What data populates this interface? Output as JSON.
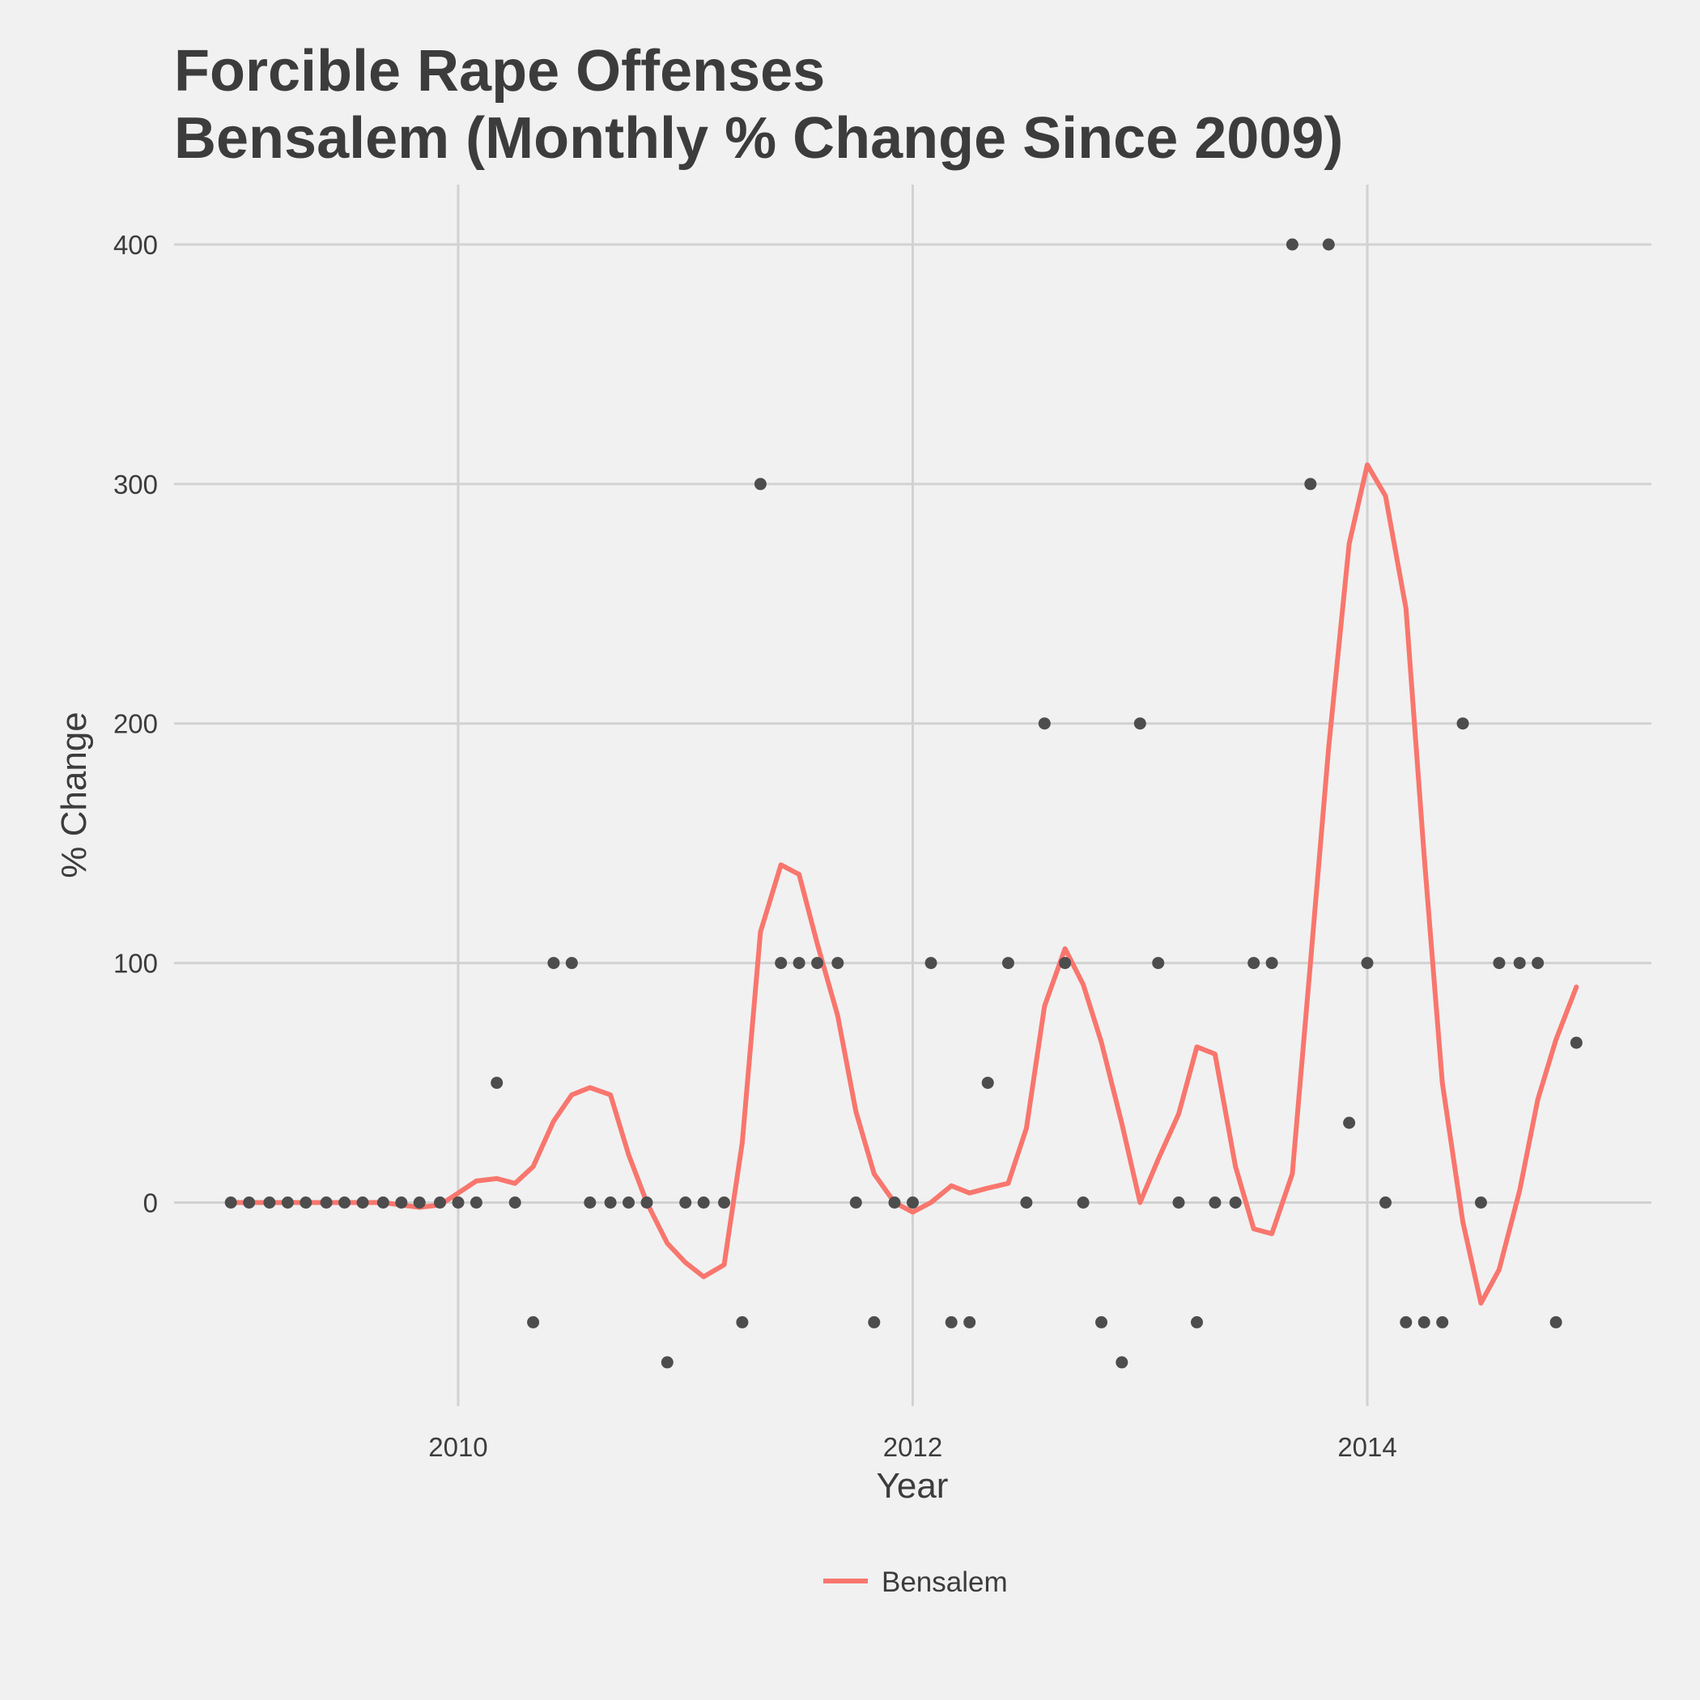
{
  "chart_data": {
    "type": "scatter",
    "title_lines": [
      "Forcible Rape Offenses",
      "Bensalem (Monthly % Change Since 2009)"
    ],
    "xlabel": "Year",
    "ylabel": "% Change",
    "x_ticks": [
      2010,
      2012,
      2014
    ],
    "y_ticks": [
      0,
      100,
      200,
      300,
      400
    ],
    "xlim": [
      2008.75,
      2015.25
    ],
    "ylim": [
      -85,
      425
    ],
    "grid": true,
    "legend_position": "bottom",
    "colors": {
      "points": "#4d4d4d",
      "line": "#f8766d",
      "grid": "#d2d2d2",
      "background": "#f1f1f1",
      "text": "#3c3c3c"
    },
    "points": [
      [
        2009.0,
        0
      ],
      [
        2009.08,
        0
      ],
      [
        2009.17,
        0
      ],
      [
        2009.25,
        0
      ],
      [
        2009.33,
        0
      ],
      [
        2009.42,
        0
      ],
      [
        2009.5,
        0
      ],
      [
        2009.58,
        0
      ],
      [
        2009.67,
        0
      ],
      [
        2009.75,
        0
      ],
      [
        2009.83,
        0
      ],
      [
        2009.92,
        0
      ],
      [
        2010.0,
        0
      ],
      [
        2010.08,
        0
      ],
      [
        2010.17,
        50
      ],
      [
        2010.25,
        0
      ],
      [
        2010.33,
        -50
      ],
      [
        2010.42,
        100
      ],
      [
        2010.5,
        100
      ],
      [
        2010.58,
        0
      ],
      [
        2010.67,
        0
      ],
      [
        2010.75,
        0
      ],
      [
        2010.83,
        0
      ],
      [
        2010.92,
        -66.7
      ],
      [
        2011.0,
        0
      ],
      [
        2011.08,
        0
      ],
      [
        2011.17,
        0
      ],
      [
        2011.25,
        -50
      ],
      [
        2011.33,
        300
      ],
      [
        2011.42,
        100
      ],
      [
        2011.5,
        100
      ],
      [
        2011.58,
        100
      ],
      [
        2011.67,
        100
      ],
      [
        2011.75,
        0
      ],
      [
        2011.83,
        -50
      ],
      [
        2011.92,
        0
      ],
      [
        2012.0,
        0
      ],
      [
        2012.08,
        100
      ],
      [
        2012.17,
        -50
      ],
      [
        2012.25,
        -50
      ],
      [
        2012.33,
        50
      ],
      [
        2012.42,
        100
      ],
      [
        2012.5,
        0
      ],
      [
        2012.58,
        200
      ],
      [
        2012.67,
        100
      ],
      [
        2012.75,
        0
      ],
      [
        2012.83,
        -50
      ],
      [
        2012.92,
        -66.7
      ],
      [
        2013.0,
        200
      ],
      [
        2013.08,
        100
      ],
      [
        2013.17,
        0
      ],
      [
        2013.25,
        -50
      ],
      [
        2013.33,
        0
      ],
      [
        2013.42,
        0
      ],
      [
        2013.5,
        100
      ],
      [
        2013.58,
        100
      ],
      [
        2013.67,
        400
      ],
      [
        2013.75,
        300
      ],
      [
        2013.83,
        400
      ],
      [
        2013.92,
        33.3
      ],
      [
        2014.0,
        100
      ],
      [
        2014.08,
        0
      ],
      [
        2014.17,
        -50
      ],
      [
        2014.25,
        -50
      ],
      [
        2014.33,
        -50
      ],
      [
        2014.42,
        200
      ],
      [
        2014.5,
        0
      ],
      [
        2014.58,
        100
      ],
      [
        2014.67,
        100
      ],
      [
        2014.75,
        100
      ],
      [
        2014.83,
        -50
      ],
      [
        2014.92,
        66.7
      ]
    ],
    "series": [
      {
        "name": "Bensalem",
        "x": [
          2009.0,
          2009.08,
          2009.17,
          2009.25,
          2009.33,
          2009.42,
          2009.5,
          2009.58,
          2009.67,
          2009.75,
          2009.83,
          2009.92,
          2010.0,
          2010.08,
          2010.17,
          2010.25,
          2010.33,
          2010.42,
          2010.5,
          2010.58,
          2010.67,
          2010.75,
          2010.83,
          2010.92,
          2011.0,
          2011.08,
          2011.17,
          2011.25,
          2011.33,
          2011.42,
          2011.5,
          2011.58,
          2011.67,
          2011.75,
          2011.83,
          2011.92,
          2012.0,
          2012.08,
          2012.17,
          2012.25,
          2012.33,
          2012.42,
          2012.5,
          2012.58,
          2012.67,
          2012.75,
          2012.83,
          2012.92,
          2013.0,
          2013.08,
          2013.17,
          2013.25,
          2013.33,
          2013.42,
          2013.5,
          2013.58,
          2013.67,
          2013.75,
          2013.83,
          2013.92,
          2014.0,
          2014.08,
          2014.17,
          2014.25,
          2014.33,
          2014.42,
          2014.5,
          2014.58,
          2014.67,
          2014.75,
          2014.83,
          2014.92
        ],
        "y": [
          0,
          0,
          0,
          0,
          0,
          0,
          0,
          0,
          0,
          -1,
          -2,
          -1,
          4,
          9,
          10,
          8,
          15,
          34,
          45,
          48,
          45,
          20,
          0,
          -17,
          -25,
          -31,
          -26,
          25,
          113,
          141,
          137,
          108,
          78,
          38,
          12,
          0,
          -4,
          0,
          7,
          4,
          6,
          8,
          31,
          82,
          106,
          91,
          67,
          33,
          0,
          18,
          37,
          65,
          62,
          15,
          -11,
          -13,
          12,
          100,
          190,
          275,
          308,
          295,
          248,
          145,
          50,
          -8,
          -42,
          -28,
          5,
          43,
          68,
          90
        ]
      }
    ]
  }
}
